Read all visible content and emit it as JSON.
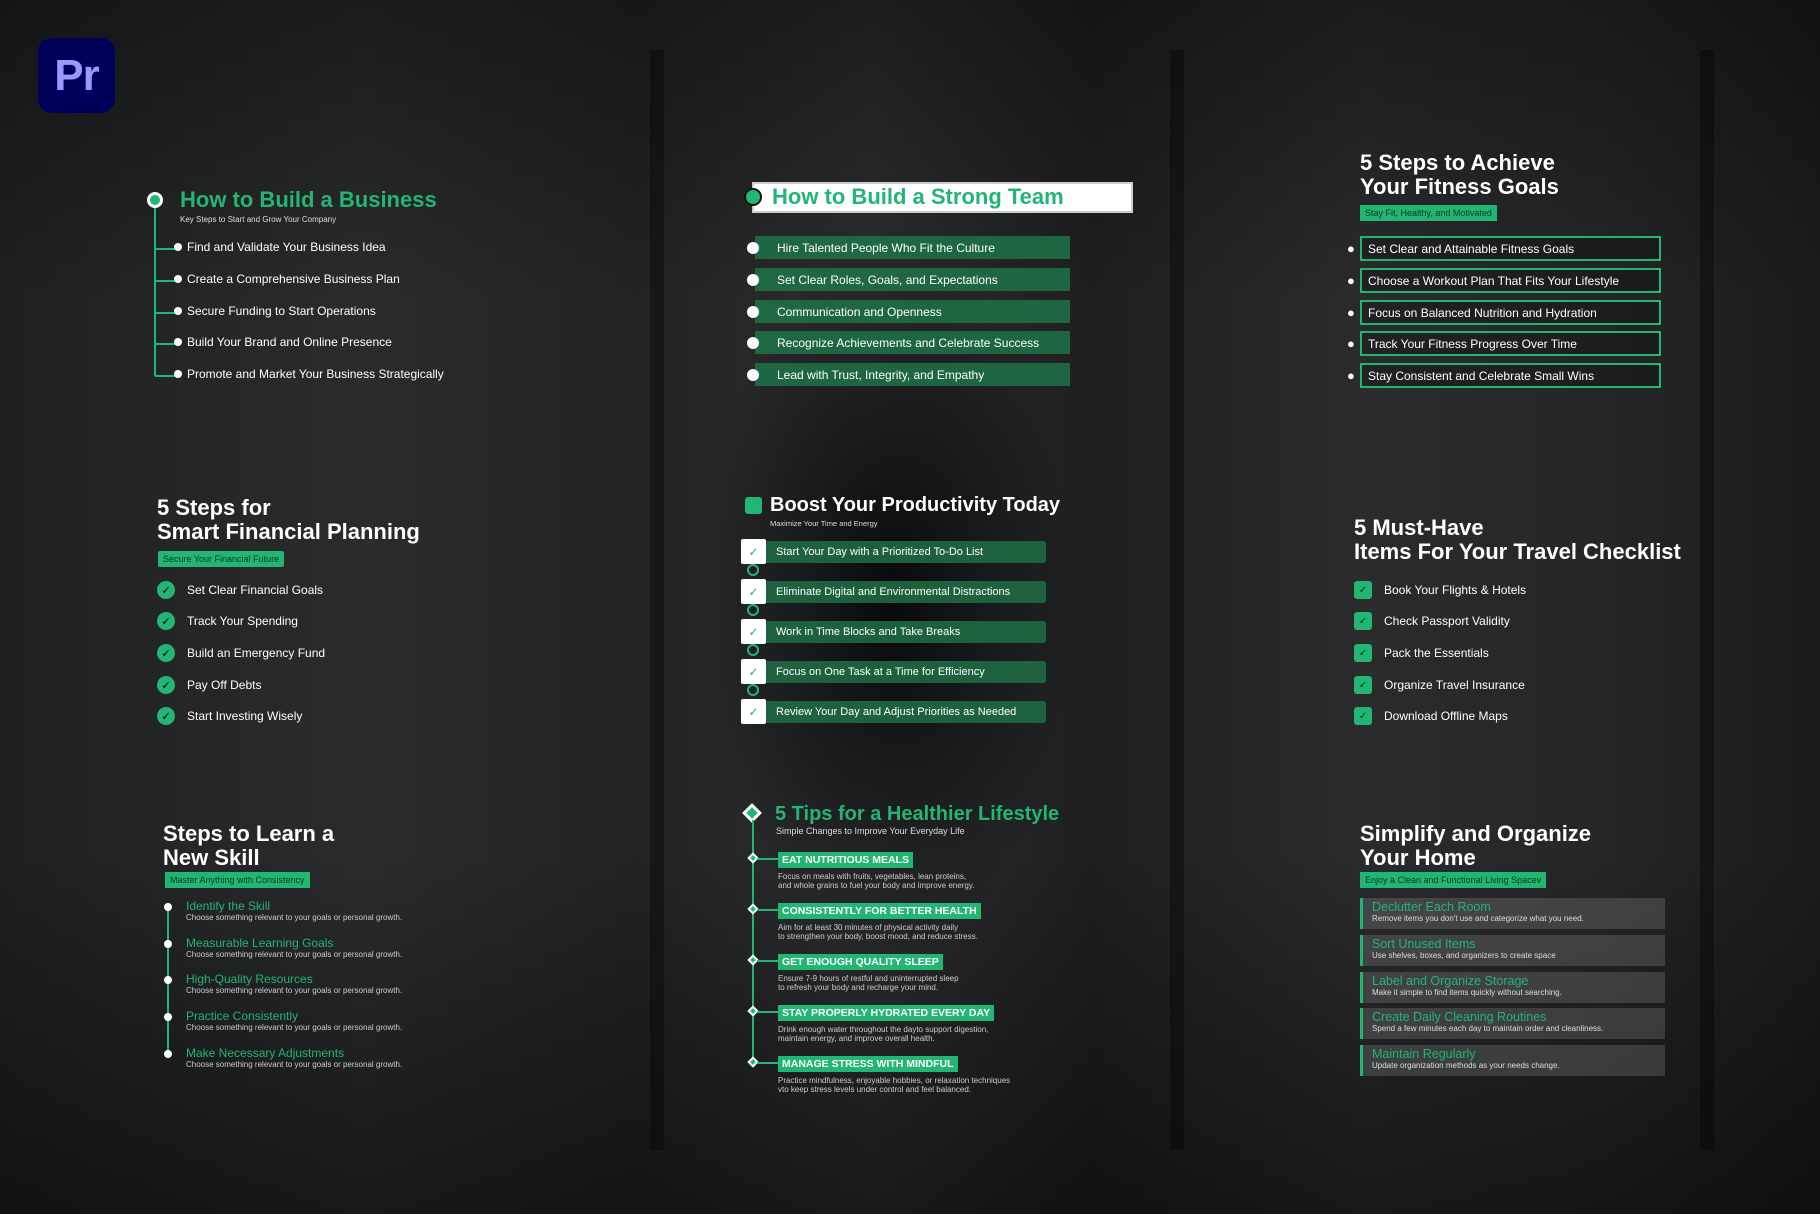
{
  "app": {
    "logo_text": "Pr",
    "accent": "#22b573"
  },
  "business": {
    "title": "How to Build a Business",
    "subtitle": "Key Steps to Start and Grow Your Company",
    "items": [
      "Find and Validate Your Business Idea",
      "Create a Comprehensive Business Plan",
      "Secure Funding to Start Operations",
      "Build Your Brand and Online Presence",
      "Promote and Market Your Business Strategically"
    ]
  },
  "team": {
    "title": "How to Build a Strong Team",
    "items": [
      "Hire Talented People Who Fit the Culture",
      "Set Clear Roles, Goals, and Expectations",
      "Communication and Openness",
      "Recognize Achievements and Celebrate Success",
      "Lead with Trust, Integrity, and Empathy"
    ]
  },
  "fitness": {
    "title_line1": "5 Steps to Achieve",
    "title_line2": "Your Fitness Goals",
    "badge": "Stay Fit, Healthy, and Motivated",
    "items": [
      "Set Clear and Attainable Fitness Goals",
      "Choose a Workout Plan That Fits Your Lifestyle",
      "Focus on Balanced Nutrition and Hydration",
      "Track Your Fitness Progress Over Time",
      "Stay Consistent and Celebrate Small Wins"
    ]
  },
  "financial": {
    "title_line1": "5 Steps for",
    "title_line2": "Smart Financial Planning",
    "badge": "Secure Your Financial Future",
    "items": [
      "Set Clear Financial Goals",
      "Track Your Spending",
      "Build an Emergency Fund",
      "Pay Off Debts",
      "Start Investing Wisely"
    ]
  },
  "productivity": {
    "title": "Boost Your Productivity Today",
    "subtitle": "Maximize Your Time and Energy",
    "items": [
      "Start Your Day with a Prioritized To-Do List",
      "Eliminate Digital and Environmental Distractions",
      "Work in Time Blocks and Take Breaks",
      "Focus on One Task at a Time for Efficiency",
      "Review Your Day and Adjust Priorities as Needed"
    ]
  },
  "travel": {
    "title_line1": "5 Must-Have",
    "title_line2": "Items For Your Travel Checklist",
    "items": [
      "Book Your Flights & Hotels",
      "Check Passport Validity",
      "Pack the Essentials",
      "Organize Travel Insurance",
      "Download Offline Maps"
    ]
  },
  "skill": {
    "title_line1": "Steps to Learn a",
    "title_line2": "New Skill",
    "badge": "Master Anything with Consistency",
    "items": [
      {
        "title": "Identify the Skill",
        "desc": "Choose something relevant to your goals or personal growth."
      },
      {
        "title": "Measurable Learning Goals",
        "desc": "Choose something relevant to your goals or personal growth."
      },
      {
        "title": "High-Quality Resources",
        "desc": "Choose something relevant to your goals or personal growth."
      },
      {
        "title": "Practice Consistently",
        "desc": "Choose something relevant to your goals or personal growth."
      },
      {
        "title": "Make Necessary Adjustments",
        "desc": "Choose something relevant to your goals or personal growth."
      }
    ]
  },
  "health": {
    "title": "5 Tips for a Healthier Lifestyle",
    "subtitle": "Simple Changes to Improve Your Everyday Life",
    "items": [
      {
        "title": "EAT NUTRITIOUS MEALS",
        "desc": "Focus on meals with fruits, vegetables, lean proteins,\nand whole grains to fuel your body and improve energy."
      },
      {
        "title": "CONSISTENTLY FOR BETTER HEALTH",
        "desc": "Aim for at least 30 minutes of physical activity daily\nto strengthen your body, boost mood, and reduce stress."
      },
      {
        "title": "GET ENOUGH QUALITY SLEEP",
        "desc": "Ensure 7-9 hours of restful and uninterrupted sleep\nto refresh your body and recharge your mind."
      },
      {
        "title": "STAY PROPERLY HYDRATED EVERY DAY",
        "desc": "Drink enough water throughout the dayto support digestion,\nmaintain energy, and improve overall health."
      },
      {
        "title": "MANAGE STRESS WITH MINDFUL",
        "desc": "Practice mindfulness, enjoyable hobbies, or relaxation techniques\nvto keep stress levels under control and feel balanced."
      }
    ]
  },
  "home": {
    "title_line1": "Simplify and Organize",
    "title_line2": "Your Home",
    "badge": "Enjoy a Clean and Functional Living Spacev",
    "items": [
      {
        "title": "Declutter Each Room",
        "desc": "Remove items you don't use and categorize what you need."
      },
      {
        "title": "Sort Unused Items",
        "desc": "Use shelves, boxes, and organizers to create space"
      },
      {
        "title": "Label and Organize Storage",
        "desc": "Make it simple to find items quickly without searching."
      },
      {
        "title": "Create Daily Cleaning Routines",
        "desc": "Spend a few minutes each day to maintain order and cleanliness."
      },
      {
        "title": "Maintain Regularly",
        "desc": "Update organization methods as your needs change."
      }
    ]
  }
}
